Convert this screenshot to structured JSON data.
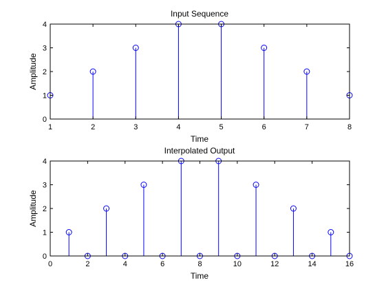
{
  "colors": {
    "stem": "#0000ff",
    "axes": "#000000",
    "background": "#ffffff"
  },
  "chart_data": [
    {
      "type": "stem",
      "title": "Input Sequence",
      "xlabel": "Time",
      "ylabel": "Amplitude",
      "xlim": [
        1,
        8
      ],
      "ylim": [
        0,
        4
      ],
      "xticks": [
        1,
        2,
        3,
        4,
        5,
        6,
        7,
        8
      ],
      "yticks": [
        0,
        1,
        2,
        3,
        4
      ],
      "grid": false,
      "x": [
        1,
        2,
        3,
        4,
        5,
        6,
        7,
        8
      ],
      "y": [
        1,
        2,
        3,
        4,
        4,
        3,
        2,
        1
      ]
    },
    {
      "type": "stem",
      "title": "Interpolated Output",
      "xlabel": "Time",
      "ylabel": "Amplitude",
      "xlim": [
        0,
        16
      ],
      "ylim": [
        0,
        4
      ],
      "xticks": [
        0,
        2,
        4,
        6,
        8,
        10,
        12,
        14,
        16
      ],
      "yticks": [
        0,
        1,
        2,
        3,
        4
      ],
      "grid": false,
      "x": [
        1,
        2,
        3,
        4,
        5,
        6,
        7,
        8,
        9,
        10,
        11,
        12,
        13,
        14,
        15,
        16
      ],
      "y": [
        1,
        0,
        2,
        0,
        3,
        0,
        4,
        0,
        4,
        0,
        3,
        0,
        2,
        0,
        1,
        0
      ]
    }
  ]
}
